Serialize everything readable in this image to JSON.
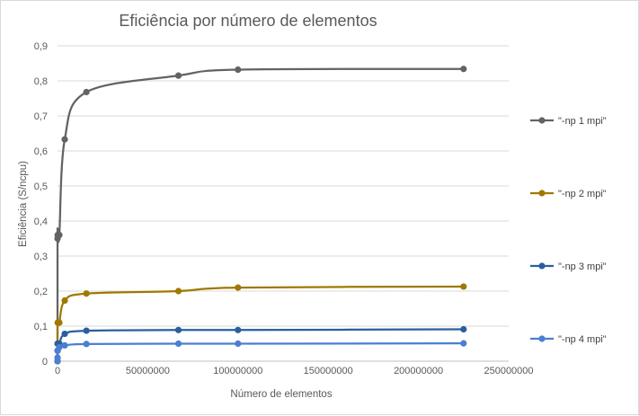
{
  "chart_data": {
    "type": "line",
    "title": "Eficiência por número de elementos",
    "xlabel": "Número  de elementos",
    "ylabel": "Eficiência (S/ncpu)",
    "xlim": [
      0,
      250000000
    ],
    "ylim": [
      0,
      0.9
    ],
    "x_ticks": [
      "0",
      "50000000",
      "100000000",
      "150000000",
      "200000000",
      "250000000"
    ],
    "y_ticks": [
      "0",
      "0,1",
      "0,2",
      "0,3",
      "0,4",
      "0,5",
      "0,6",
      "0,7",
      "0,8",
      "0,9"
    ],
    "grid": "horizontal",
    "legend_position": "right",
    "x": [
      1000,
      10000,
      100000,
      1000000,
      4000000,
      16000000,
      67000000,
      100000000,
      225000000
    ],
    "series": [
      {
        "name": "\"-np 1 mpi\"",
        "color": "#636363",
        "values": [
          0.0,
          0.35,
          0.36,
          0.36,
          0.633,
          0.768,
          0.815,
          0.832,
          0.834
        ]
      },
      {
        "name": "\"-np 2 mpi\"",
        "color": "#a07800",
        "values": [
          0.0,
          0.05,
          0.11,
          0.11,
          0.173,
          0.193,
          0.2,
          0.21,
          0.213
        ]
      },
      {
        "name": "\"-np 3 mpi\"",
        "color": "#2a5ea0",
        "values": [
          0.0,
          0.03,
          0.05,
          0.05,
          0.078,
          0.087,
          0.089,
          0.089,
          0.091
        ]
      },
      {
        "name": "\"-np 4 mpi\"",
        "color": "#4a7fd1",
        "values": [
          0.0,
          0.01,
          0.03,
          0.04,
          0.045,
          0.049,
          0.05,
          0.05,
          0.051
        ]
      }
    ]
  }
}
